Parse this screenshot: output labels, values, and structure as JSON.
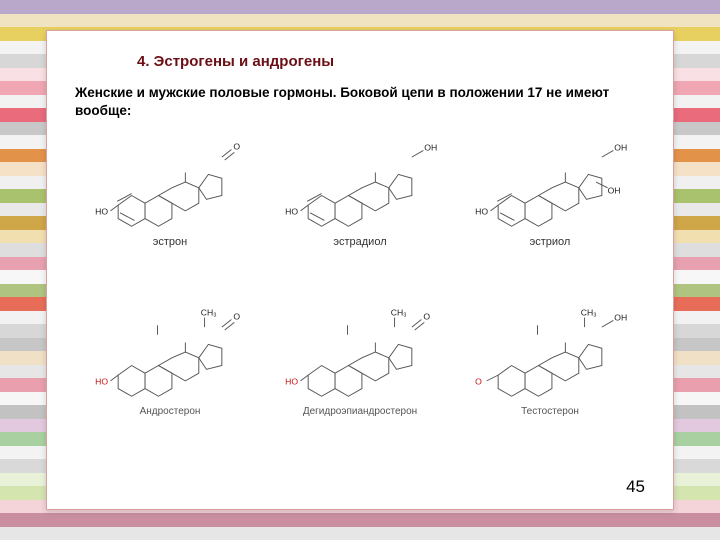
{
  "title": "4. Эстрогены и андрогены",
  "subtitle": "Женские и мужские половые гормоны. Боковой цепи в положении 17 не имеют вообще:",
  "page_number": "45",
  "stripes": [
    "#b9a8c9",
    "#f0e4c0",
    "#e8d060",
    "#f3f3f3",
    "#d7d7d7",
    "#f9e0e5",
    "#f1a6b3",
    "#f2f2f2",
    "#e96b7c",
    "#c8c8c8",
    "#f3f3f3",
    "#e3924a",
    "#f4e1c6",
    "#f0f0f0",
    "#a9c26e",
    "#e9e9e9",
    "#cfa648",
    "#f2dfb0",
    "#dedede",
    "#e8a1b1",
    "#f7f7f7",
    "#afc480",
    "#e86d58",
    "#f2f2f2",
    "#d7d7d7",
    "#c6c6c6",
    "#f0e0c5",
    "#e6e6e6",
    "#e99fae",
    "#f6f6f6",
    "#c2c2c2",
    "#e2c9df",
    "#a8d0a0",
    "#f3f3f3",
    "#d9d9d9",
    "#e9f2d9",
    "#d4e5b0",
    "#f4d3d9",
    "#c98fa0",
    "#e6e6e6"
  ],
  "molecules_top": [
    {
      "caption": "эстрон",
      "left_label": "HO",
      "d_ring": "ketone"
    },
    {
      "caption": "эстрадиол",
      "left_label": "HO",
      "d_ring": "oh"
    },
    {
      "caption": "эстриол",
      "left_label": "HO",
      "d_ring": "diol"
    }
  ],
  "molecules_bottom": [
    {
      "caption": "Андростерон",
      "left_label": "HO",
      "d_ring": "ketone",
      "top_label": "CH₃"
    },
    {
      "caption": "Дегидроэпиандростерон",
      "left_label": "HO",
      "d_ring": "ketone",
      "top_label": "CH₃"
    },
    {
      "caption": "Тестостерон",
      "left_label": "O",
      "d_ring": "oh",
      "top_label": "CH₃"
    }
  ],
  "colors": {
    "title": "#6b0f15",
    "frame_border": "#d9a0a0",
    "red_label": "#c11"
  }
}
